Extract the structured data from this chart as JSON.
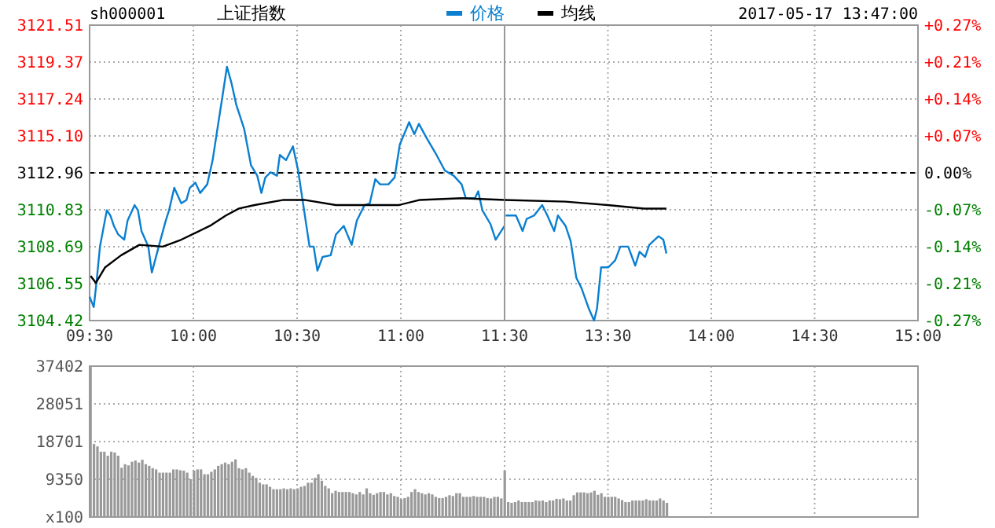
{
  "chart_data": [
    {
      "type": "line",
      "title": "上证指数",
      "annotations": [
        "sh000001"
      ],
      "legend": "top right",
      "grid": true,
      "xlim": [
        9.5,
        11.5
      ],
      "xticks": [
        {
          "value": 9.5,
          "label": "09:30"
        },
        {
          "value": 10,
          "label": "10:00"
        },
        {
          "value": 10.5,
          "label": "10:30"
        },
        {
          "value": 11,
          "label": "11:00"
        },
        {
          "value": 11.5,
          "label": "11:30"
        }
      ],
      "ylim": [
        3104.42,
        3121.51
      ],
      "yticks": [
        3104.42,
        3106.55,
        3108.69,
        3110.83,
        3112.96,
        {
          "value": 3115.1,
          "label": "3115.10"
        },
        3117.24,
        3119.37,
        3121.51
      ],
      "ref_lines": [
        {
          "axis": "y",
          "value": 3112.96,
          "color": "#000000",
          "line_style": "dashed"
        }
      ],
      "series": [
        {
          "name": "价格",
          "color": "#0a7fd0",
          "x": [
            9.5,
            9.52,
            9.533,
            9.55,
            9.583,
            9.6,
            9.617,
            9.638,
            9.667,
            9.683,
            9.717,
            9.733,
            9.75,
            9.783,
            9.8,
            9.833,
            9.867,
            9.883,
            9.908,
            9.942,
            9.967,
            9.983,
            10.01,
            10.033,
            10.067,
            10.093,
            10.112,
            10.143,
            10.162,
            10.183,
            10.207,
            10.245,
            10.278,
            10.308,
            10.328,
            10.347,
            10.372,
            10.403,
            10.417,
            10.447,
            10.48,
            10.505,
            10.53,
            10.56,
            10.58,
            10.598,
            10.623,
            10.662,
            10.687,
            10.725,
            10.763,
            10.788,
            10.825,
            10.85,
            10.877,
            10.9,
            10.94,
            10.97,
            10.995,
            11.04,
            11.065,
            11.087,
            11.128,
            11.172,
            11.212,
            11.255,
            11.293,
            11.313,
            11.357,
            11.373,
            11.393,
            11.432,
            11.457,
            11.5
          ],
          "values": [
            3105.8,
            3105.2,
            3106.6,
            3108.7,
            3110.8,
            3110.5,
            3109.9,
            3109.4,
            3109.1,
            3110.2,
            3111.1,
            3110.8,
            3109.6,
            3108.7,
            3107.2,
            3108.7,
            3110.2,
            3110.8,
            3112.1,
            3111.2,
            3111.4,
            3112.1,
            3112.4,
            3111.8,
            3112.3,
            3113.7,
            3115.2,
            3117.6,
            3119.1,
            3118.2,
            3116.9,
            3115.5,
            3113.4,
            3112.8,
            3111.8,
            3112.7,
            3113.0,
            3112.8,
            3114.0,
            3113.7,
            3114.5,
            3113.1,
            3111.1,
            3108.7,
            3108.7,
            3107.3,
            3108.1,
            3108.2,
            3109.4,
            3109.9,
            3108.8,
            3110.2,
            3111.1,
            3111.2,
            3112.6,
            3112.3,
            3112.3,
            3112.7,
            3114.6,
            3115.9,
            3115.2,
            3115.8,
            3114.9,
            3114.0,
            3113.1,
            3112.8,
            3112.3,
            3111.5,
            3111.5,
            3111.9,
            3110.8,
            3110.0,
            3109.1,
            3109.9
          ]
        },
        {
          "name": "均线",
          "color": "#000000",
          "x": [
            9.505,
            9.53,
            9.575,
            9.652,
            9.74,
            9.853,
            9.942,
            10.08,
            10.157,
            10.22,
            10.295,
            10.435,
            10.535,
            10.687,
            10.99,
            11.092,
            11.293,
            11.5
          ],
          "values": [
            3107.0,
            3106.6,
            3107.5,
            3108.2,
            3108.8,
            3108.7,
            3109.1,
            3109.9,
            3110.5,
            3110.9,
            3111.1,
            3111.4,
            3111.4,
            3111.1,
            3111.1,
            3111.4,
            3111.5,
            3111.4
          ]
        }
      ]
    },
    {
      "type": "line",
      "annotations": [
        "2017-05-17 13:47:00"
      ],
      "grid": true,
      "tick_labels": "x",
      "xlim": [
        13,
        15
      ],
      "xticks": [
        {
          "value": 13,
          "label": null
        },
        {
          "value": 13.5,
          "label": "13:30"
        },
        {
          "value": 14,
          "label": "14:00"
        },
        {
          "value": 14.5,
          "label": "14:30"
        },
        {
          "value": 15,
          "label": "15:00"
        }
      ],
      "ylim": [
        3104.42,
        3121.51
      ],
      "y2lim": [
        -0.2747,
        0.2747
      ],
      "y2ticks": [
        {
          "value": -0.2747,
          "label": "-0.27%"
        },
        {
          "value": -0.206,
          "label": "-0.21%"
        },
        {
          "value": -0.1373,
          "label": "-0.14%"
        },
        {
          "value": -0.0687,
          "label": "-0.07%"
        },
        {
          "value": 0,
          "label": "0.00%"
        },
        {
          "value": 0.0687,
          "label": "+0.07%"
        },
        {
          "value": 0.1373,
          "label": "+0.14%"
        },
        {
          "value": 0.206,
          "label": "+0.21%"
        },
        {
          "value": 0.2747,
          "label": "+0.27%"
        }
      ],
      "ref_lines": [
        {
          "axis": "y",
          "value": 3112.96,
          "color": "#000000",
          "line_style": "dashed"
        }
      ],
      "series": [
        {
          "color": "#0a7fd0",
          "x": [
            13.005,
            13.055,
            13.087,
            13.107,
            13.143,
            13.182,
            13.207,
            13.24,
            13.258,
            13.295,
            13.32,
            13.347,
            13.372,
            13.408,
            13.433,
            13.447,
            13.467,
            13.502,
            13.535,
            13.56,
            13.598,
            13.632,
            13.653,
            13.68,
            13.7,
            13.745,
            13.768,
            13.783
          ],
          "values": [
            3110.5,
            3110.5,
            3109.6,
            3110.3,
            3110.5,
            3111.1,
            3110.5,
            3109.6,
            3110.5,
            3109.9,
            3109.0,
            3106.9,
            3106.3,
            3105.1,
            3104.42,
            3105.1,
            3107.5,
            3107.5,
            3107.9,
            3108.7,
            3108.7,
            3107.6,
            3108.4,
            3108.1,
            3108.8,
            3109.3,
            3109.1,
            3108.3
          ]
        },
        {
          "color": "#000000",
          "x": [
            13.0,
            13.295,
            13.5,
            13.675,
            13.783
          ],
          "values": [
            3111.4,
            3111.3,
            3111.1,
            3110.9,
            3110.9
          ]
        }
      ]
    },
    {
      "type": "bar",
      "grid": true,
      "tick_labels": "y",
      "color": "#999999",
      "categories": [
        null,
        null,
        null,
        null,
        null,
        null,
        null,
        null,
        null,
        null,
        null,
        null,
        null,
        null,
        null,
        null,
        null,
        null,
        null,
        null,
        null,
        null,
        null,
        null,
        null,
        null,
        null,
        null,
        null,
        null,
        null,
        null,
        null,
        null,
        null,
        null,
        null,
        null,
        null,
        null,
        null,
        null,
        null,
        null,
        null,
        null,
        null,
        null,
        null,
        null,
        null,
        null,
        null,
        null,
        null,
        null,
        null,
        null,
        null,
        null,
        null,
        null,
        null,
        null,
        null,
        null,
        null,
        null,
        null,
        null,
        null,
        null,
        null,
        null,
        null,
        null,
        null,
        null,
        null,
        null,
        null,
        null,
        null,
        null,
        null,
        null,
        null,
        null,
        null,
        null,
        null,
        null,
        null,
        null,
        null,
        null,
        null,
        null,
        null,
        null,
        null,
        null,
        null,
        null,
        null,
        null,
        null,
        null,
        null,
        null,
        null,
        null,
        null,
        null,
        null,
        null,
        null,
        null,
        null,
        null,
        null,
        null,
        null,
        null,
        null,
        null,
        null,
        null,
        null,
        null,
        null,
        null,
        null,
        null,
        null,
        null,
        null,
        null,
        null,
        null,
        null,
        null,
        null,
        null,
        null,
        null,
        null,
        null,
        null,
        null,
        null,
        null,
        null,
        null,
        null,
        null,
        null,
        null,
        null,
        null,
        null,
        null,
        null,
        null,
        null,
        null,
        null,
        null,
        null,
        null,
        null,
        null,
        null,
        null,
        null,
        null,
        null,
        null,
        null,
        null,
        null,
        null,
        null,
        null,
        null,
        null,
        null,
        null,
        null,
        null,
        null,
        null,
        null,
        null,
        null,
        null,
        null,
        null,
        null,
        null,
        null,
        null,
        null,
        null,
        null,
        null,
        null,
        null,
        null,
        null,
        null,
        null,
        null,
        null,
        null,
        null,
        null,
        null,
        null,
        null,
        null,
        null,
        null,
        null,
        null,
        null,
        null,
        null,
        null,
        null,
        null,
        null,
        null,
        null,
        null,
        null,
        null,
        null,
        null,
        null,
        null
      ],
      "ylim": [
        0,
        37402
      ],
      "yticks": [
        {
          "value": 0,
          "label": "x100"
        },
        9350,
        18701,
        28051,
        37402
      ],
      "values": [
        37400,
        18100,
        17500,
        16200,
        16200,
        15200,
        16200,
        16000,
        15200,
        12200,
        13100,
        12800,
        13700,
        14000,
        13500,
        14200,
        13100,
        12700,
        12100,
        11800,
        11000,
        11000,
        11000,
        11000,
        11800,
        11800,
        11600,
        11500,
        11000,
        9400,
        11500,
        11800,
        11800,
        10600,
        10600,
        11200,
        11800,
        12700,
        13100,
        13500,
        13100,
        13700,
        14300,
        12100,
        11800,
        12100,
        11000,
        10200,
        9700,
        8500,
        8100,
        8100,
        7500,
        6900,
        6900,
        6900,
        7100,
        6900,
        7100,
        6900,
        7100,
        7500,
        7700,
        8500,
        8500,
        9700,
        10600,
        9000,
        7700,
        7100,
        5900,
        6500,
        6200,
        6200,
        6200,
        6200,
        5900,
        5600,
        6200,
        5600,
        7100,
        5900,
        5500,
        5900,
        6200,
        6200,
        5600,
        5900,
        5200,
        5000,
        4400,
        4700,
        5000,
        6200,
        6900,
        6200,
        5900,
        5600,
        5900,
        5600,
        5000,
        4700,
        4700,
        5000,
        5400,
        5200,
        5900,
        5900,
        5000,
        5000,
        5000,
        5200,
        5000,
        5000,
        5000,
        4700,
        4600,
        5000,
        5000,
        4600,
        11500,
        3700,
        3500,
        3700,
        4100,
        3700,
        3700,
        3700,
        3700,
        4100,
        4000,
        4100,
        3700,
        4100,
        4100,
        4500,
        4400,
        4600,
        4100,
        4100,
        5400,
        6100,
        6100,
        6100,
        5900,
        6100,
        6500,
        5500,
        5900,
        5000,
        5000,
        5000,
        5000,
        4600,
        4200,
        3700,
        3700,
        4100,
        4100,
        4100,
        4100,
        4400,
        4100,
        4100,
        4100,
        4600,
        4100,
        3500,
        null,
        null,
        null,
        null,
        null,
        null,
        null,
        null,
        null,
        null,
        null,
        null,
        null,
        null,
        null,
        null,
        null,
        null,
        null,
        null,
        null,
        null,
        null,
        null,
        null,
        null,
        null,
        null,
        null,
        null,
        null,
        null,
        null,
        null,
        null,
        null,
        null,
        null,
        null,
        null,
        null,
        null,
        null,
        null,
        null,
        null,
        null,
        null,
        null,
        null,
        null,
        null,
        null,
        null,
        null,
        null,
        null,
        null,
        null,
        null,
        null,
        null,
        null,
        null,
        null,
        null,
        null,
        null,
        null,
        null,
        null,
        null,
        null
      ]
    }
  ]
}
